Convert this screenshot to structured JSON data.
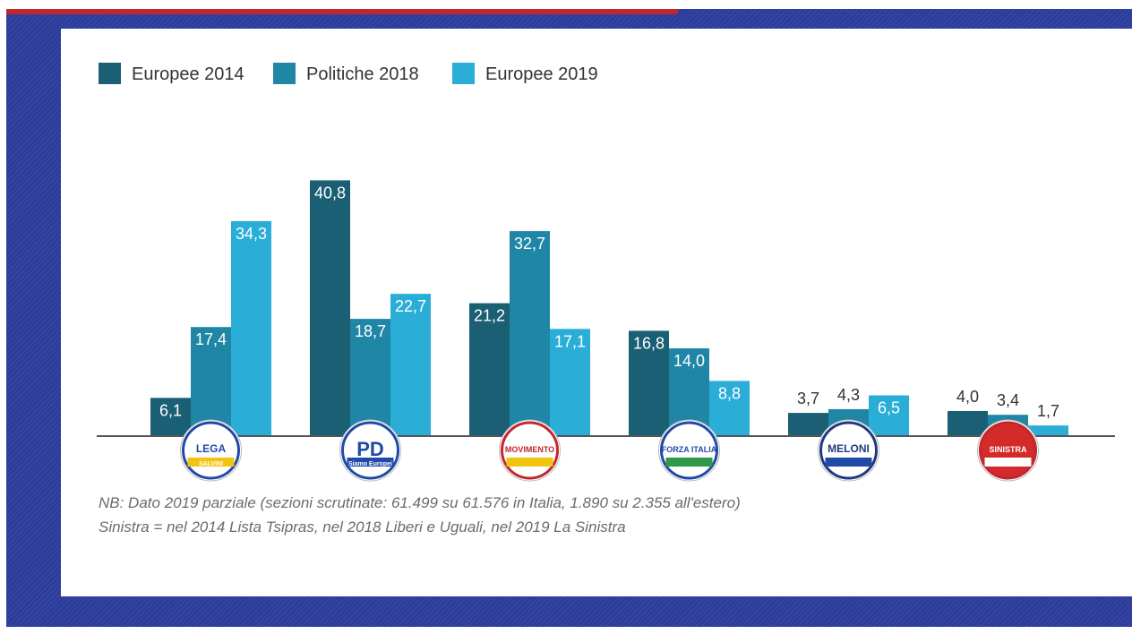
{
  "chart_data": {
    "type": "bar",
    "legend_position": "top-left",
    "grid": false,
    "ylim": [
      0,
      45
    ],
    "categories": [
      "Lega",
      "PD",
      "Movimento 5 Stelle",
      "Forza Italia",
      "Fratelli d'Italia",
      "Sinistra"
    ],
    "series": [
      {
        "name": "Europee 2014",
        "color": "#1b5f74",
        "values": [
          6.1,
          40.8,
          21.2,
          16.8,
          3.7,
          4.0
        ],
        "labels": [
          "6,1",
          "40,8",
          "21,2",
          "16,8",
          "3,7",
          "4,0"
        ]
      },
      {
        "name": "Politiche 2018",
        "color": "#1f86a5",
        "values": [
          17.4,
          18.7,
          32.7,
          14.0,
          4.3,
          3.4
        ],
        "labels": [
          "17,4",
          "18,7",
          "32,7",
          "14,0",
          "4,3",
          "3,4"
        ]
      },
      {
        "name": "Europee 2019",
        "color": "#2aaed8",
        "values": [
          34.3,
          22.7,
          17.1,
          8.8,
          6.5,
          1.7
        ],
        "labels": [
          "34,3",
          "22,7",
          "17,1",
          "8,8",
          "6,5",
          "1,7"
        ]
      }
    ],
    "logos": [
      {
        "icon": "lega-logo",
        "top": "LEGA",
        "bottom": "SALVINI",
        "ring": "#1f4aa8",
        "fill": "#ffffff",
        "band": "#f1c40f"
      },
      {
        "icon": "pd-logo",
        "top": "PD",
        "bottom": "Siamo Europei",
        "ring": "#1f4aa8",
        "fill": "#ffffff",
        "band": "#1f4aa8"
      },
      {
        "icon": "m5s-logo",
        "top": "MOVIMENTO",
        "bottom": "",
        "ring": "#c0282e",
        "fill": "#ffffff",
        "band": "#f1c40f"
      },
      {
        "icon": "forza-italia-logo",
        "top": "FORZA ITALIA",
        "bottom": "",
        "ring": "#1f4aa8",
        "fill": "#ffffff",
        "band": "#2e9a48"
      },
      {
        "icon": "fratelli-italia-logo",
        "top": "MELONI",
        "bottom": "",
        "ring": "#1f3a80",
        "fill": "#ffffff",
        "band": "#1f4aa8"
      },
      {
        "icon": "la-sinistra-logo",
        "top": "SINISTRA",
        "bottom": "",
        "ring": "#c0282e",
        "fill": "#d42a2a",
        "band": "#ffffff"
      }
    ],
    "notes": [
      "NB: Dato 2019 parziale (sezioni scrutinate: 61.499 su 61.576 in Italia, 1.890 su 2.355 all'estero)",
      "Sinistra = nel 2014 Lista Tsipras, nel 2018 Liberi e Uguali, nel 2019 La Sinistra"
    ]
  }
}
